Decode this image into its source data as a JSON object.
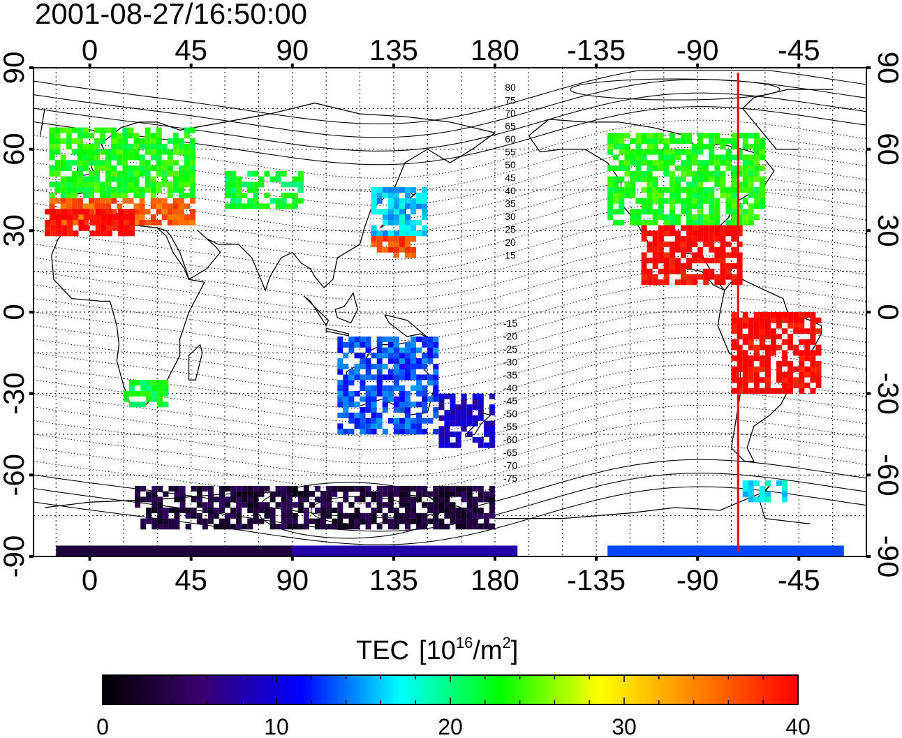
{
  "title": "2001-08-27/16:50:00",
  "axes": {
    "top_labels": [
      "0",
      "45",
      "90",
      "135",
      "180",
      "-135",
      "-90",
      "-45"
    ],
    "bottom_labels": [
      "0",
      "45",
      "90",
      "135",
      "180",
      "-135",
      "-90",
      "-45"
    ],
    "left_labels": [
      "90",
      "60",
      "30",
      "0",
      "-30",
      "-60",
      "-90"
    ],
    "right_labels": [
      "90",
      "60",
      "30",
      "0",
      "-30",
      "-60",
      "-90"
    ],
    "lon_ticks": [
      0,
      45,
      90,
      135,
      180,
      225,
      270,
      315
    ],
    "lat_ticks": [
      90,
      60,
      30,
      0,
      -30,
      -60,
      -90
    ]
  },
  "contour_labels_north": [
    "80",
    "75",
    "70",
    "65",
    "60",
    "55",
    "50",
    "45",
    "40",
    "35",
    "30",
    "25",
    "20",
    "15"
  ],
  "contour_labels_south": [
    "-15",
    "-20",
    "-25",
    "-30",
    "-35",
    "-40",
    "-45",
    "-50",
    "-55",
    "-60",
    "-65",
    "-70",
    "-75"
  ],
  "colorbar": {
    "title": "TEC",
    "unit_open": "[10",
    "unit_exp": "16",
    "unit_mid": "/m",
    "unit_exp2": "2",
    "unit_close": "]",
    "tick_labels": [
      "0",
      "10",
      "20",
      "30",
      "40"
    ],
    "min": 0,
    "max": 40,
    "colors": [
      "#000000",
      "#3a0070",
      "#0000ff",
      "#00ffff",
      "#00ff00",
      "#ffff00",
      "#ff8000",
      "#ff0000"
    ]
  },
  "terminator_longitude": -72,
  "terminator_color": "#ff0000",
  "chart_data": {
    "type": "heatmap",
    "title": "2001-08-27/16:50:00",
    "xlabel": "",
    "ylabel": "",
    "colorbar_label": "TEC [10^16/m^2]",
    "xlim": [
      -25,
      345
    ],
    "ylim": [
      -90,
      90
    ],
    "clim": [
      0,
      40
    ],
    "regions": [
      {
        "lon": [
          -18,
          45
        ],
        "lat": [
          42,
          68
        ],
        "tec": 23
      },
      {
        "lon": [
          -18,
          45
        ],
        "lat": [
          32,
          42
        ],
        "tec": 36
      },
      {
        "lon": [
          -20,
          20
        ],
        "lat": [
          28,
          38
        ],
        "tec": 40
      },
      {
        "lon": [
          60,
          95
        ],
        "lat": [
          38,
          52
        ],
        "tec": 22
      },
      {
        "lon": [
          125,
          150
        ],
        "lat": [
          28,
          46
        ],
        "tec": 16
      },
      {
        "lon": [
          125,
          145
        ],
        "lat": [
          20,
          28
        ],
        "tec": 37
      },
      {
        "lon": [
          230,
          300
        ],
        "lat": [
          32,
          65
        ],
        "tec": 23
      },
      {
        "lon": [
          245,
          290
        ],
        "lat": [
          10,
          32
        ],
        "tec": 40
      },
      {
        "lon": [
          285,
          325
        ],
        "lat": [
          -30,
          0
        ],
        "tec": 40
      },
      {
        "lon": [
          110,
          155
        ],
        "lat": [
          -45,
          -10
        ],
        "tec": 13
      },
      {
        "lon": [
          15,
          35
        ],
        "lat": [
          -35,
          -25
        ],
        "tec": 22
      },
      {
        "lon": [
          155,
          180
        ],
        "lat": [
          -50,
          -30
        ],
        "tec": 9
      },
      {
        "lon": [
          20,
          180
        ],
        "lat": [
          -80,
          -65
        ],
        "tec": 3
      },
      {
        "lon": [
          -15,
          90
        ],
        "lat": [
          -90,
          -86
        ],
        "tec": 3
      },
      {
        "lon": [
          90,
          190
        ],
        "lat": [
          -90,
          -86
        ],
        "tec": 8
      },
      {
        "lon": [
          230,
          335
        ],
        "lat": [
          -90,
          -86
        ],
        "tec": 13
      },
      {
        "lon": [
          290,
          310
        ],
        "lat": [
          -70,
          -62
        ],
        "tec": 17
      }
    ]
  }
}
